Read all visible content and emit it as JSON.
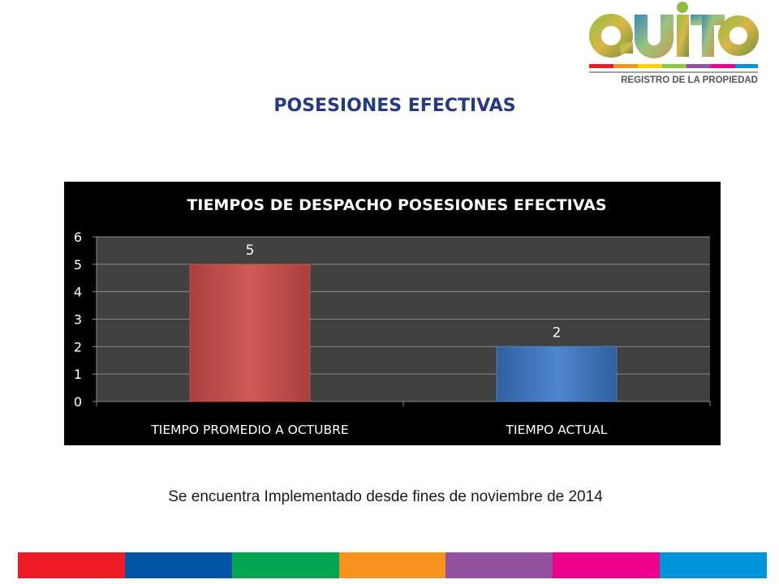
{
  "slide": {
    "title": "POSESIONES EFECTIVAS",
    "caption": "Se encuentra Implementado desde fines de noviembre de 2014"
  },
  "logo": {
    "wordmark": "QUITO",
    "subtitle": "REGISTRO DE LA PROPIEDAD"
  },
  "chart_data": {
    "type": "bar",
    "title": "TIEMPOS DE DESPACHO POSESIONES EFECTIVAS",
    "categories": [
      "TIEMPO PROMEDIO A OCTUBRE",
      "TIEMPO ACTUAL"
    ],
    "values": [
      5,
      2
    ],
    "data_labels": [
      "5",
      "2"
    ],
    "bar_colors": [
      "#c0504d",
      "#4f81bd"
    ],
    "ylim": [
      0,
      6
    ],
    "yticks": [
      "0",
      "1",
      "2",
      "3",
      "4",
      "5",
      "6"
    ],
    "grid": true,
    "background": "#000000",
    "plot_background": "#404040"
  },
  "footer": {
    "stripe_colors": [
      "#ed1c24",
      "#0054a6",
      "#00a651",
      "#f7941d",
      "#92509f",
      "#ec008c",
      "#0095da"
    ]
  }
}
